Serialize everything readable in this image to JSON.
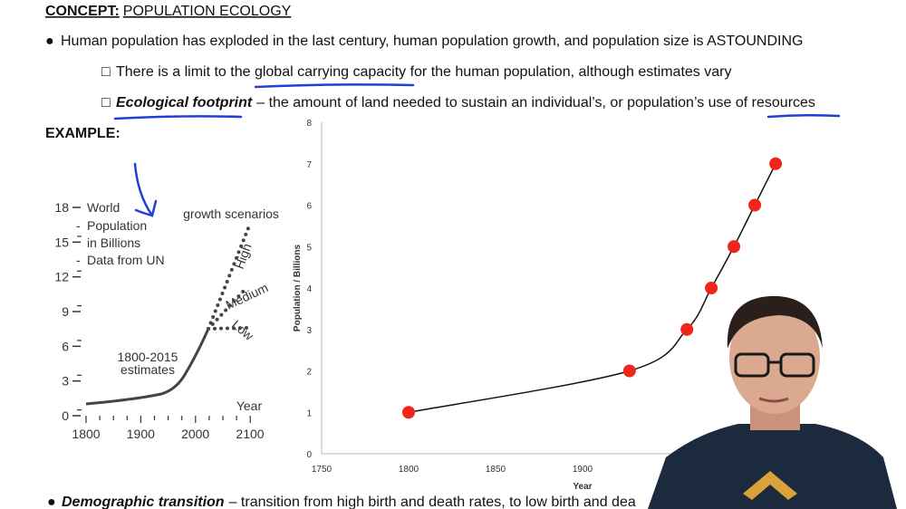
{
  "header": {
    "label": "CONCEPT:",
    "title": "POPULATION ECOLOGY"
  },
  "bullets": [
    {
      "text": "Human population has exploded in the last century, human population growth, and population size is ASTOUNDING"
    }
  ],
  "sub_bullets": [
    {
      "text": "There is a limit to the global carrying capacity for the human population, although estimates vary"
    },
    {
      "term": "Ecological footprint",
      "text": "– the amount of land needed to sustain an individual’s, or population’s use of resources"
    }
  ],
  "example_label": "EXAMPLE:",
  "left_chart": {
    "title_lines": [
      "World",
      "Population",
      "in Billions"
    ],
    "source": "Data from UN",
    "scenario_title": "growth scenarios",
    "scenarios": [
      "High",
      "Medium",
      "Low"
    ],
    "estimate_label": [
      "1800-2015",
      "estimates"
    ],
    "x_label": "Year",
    "yticks": [
      0,
      3,
      6,
      9,
      12,
      15,
      18
    ],
    "xticks": [
      1800,
      1900,
      2000,
      2100
    ],
    "ylim": [
      0,
      18
    ],
    "xlim": [
      1800,
      2100
    ]
  },
  "right_chart": {
    "type": "scatter",
    "x_label": "Year",
    "y_label": "Population / Billions",
    "xlim": [
      1750,
      2050
    ],
    "ylim": [
      0,
      8
    ],
    "xticks": [
      1750,
      1800,
      1850,
      1900
    ],
    "yticks": [
      0,
      1,
      2,
      3,
      4,
      5,
      6,
      7,
      8
    ],
    "x": [
      1800,
      1927,
      1960,
      1974,
      1987,
      1999,
      2011
    ],
    "values": [
      1,
      2,
      3,
      4,
      5,
      6,
      7
    ],
    "color": "#f0261b"
  },
  "footer": {
    "term": "Demographic transition",
    "text": "– transition from high birth and death rates, to low birth and dea"
  }
}
